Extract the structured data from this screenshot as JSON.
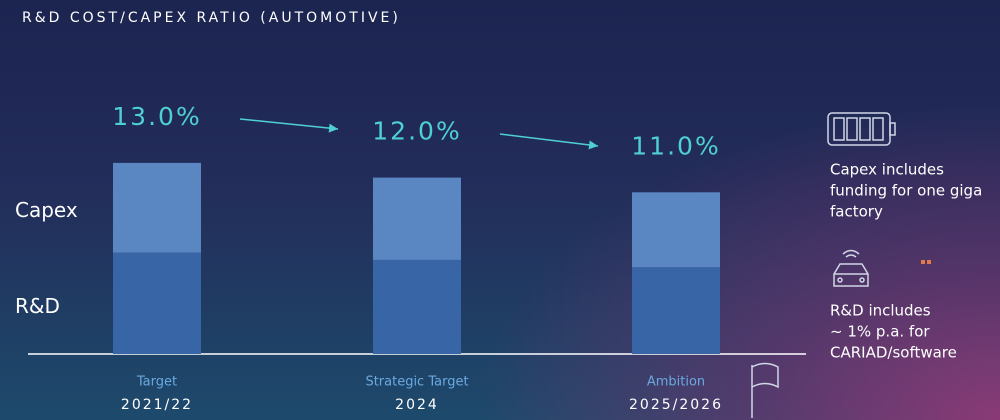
{
  "chart_data": {
    "type": "stacked_bar",
    "title": "R&D COST/CAPEX RATIO (AUTOMOTIVE)",
    "categories": [
      "Target",
      "Strategic Target",
      "Ambition"
    ],
    "periods": [
      "2021/22",
      "2024",
      "2025/2026"
    ],
    "series": [
      {
        "name": "R&D",
        "color": "#3865a6",
        "values": [
          6.9,
          6.4,
          5.9
        ]
      },
      {
        "name": "Capex",
        "color": "#5a87c2",
        "values": [
          6.1,
          5.6,
          5.1
        ]
      }
    ],
    "totals": [
      13.0,
      12.0,
      11.0
    ],
    "total_labels": [
      "13.0%",
      "12.0%",
      "11.0%"
    ],
    "notes": [
      {
        "lines": [
          "Capex includes",
          "funding for one giga",
          "factory"
        ]
      },
      {
        "lines": [
          "R&D includes",
          "~ 1% p.a. for",
          "CARIAD/software"
        ]
      }
    ]
  }
}
